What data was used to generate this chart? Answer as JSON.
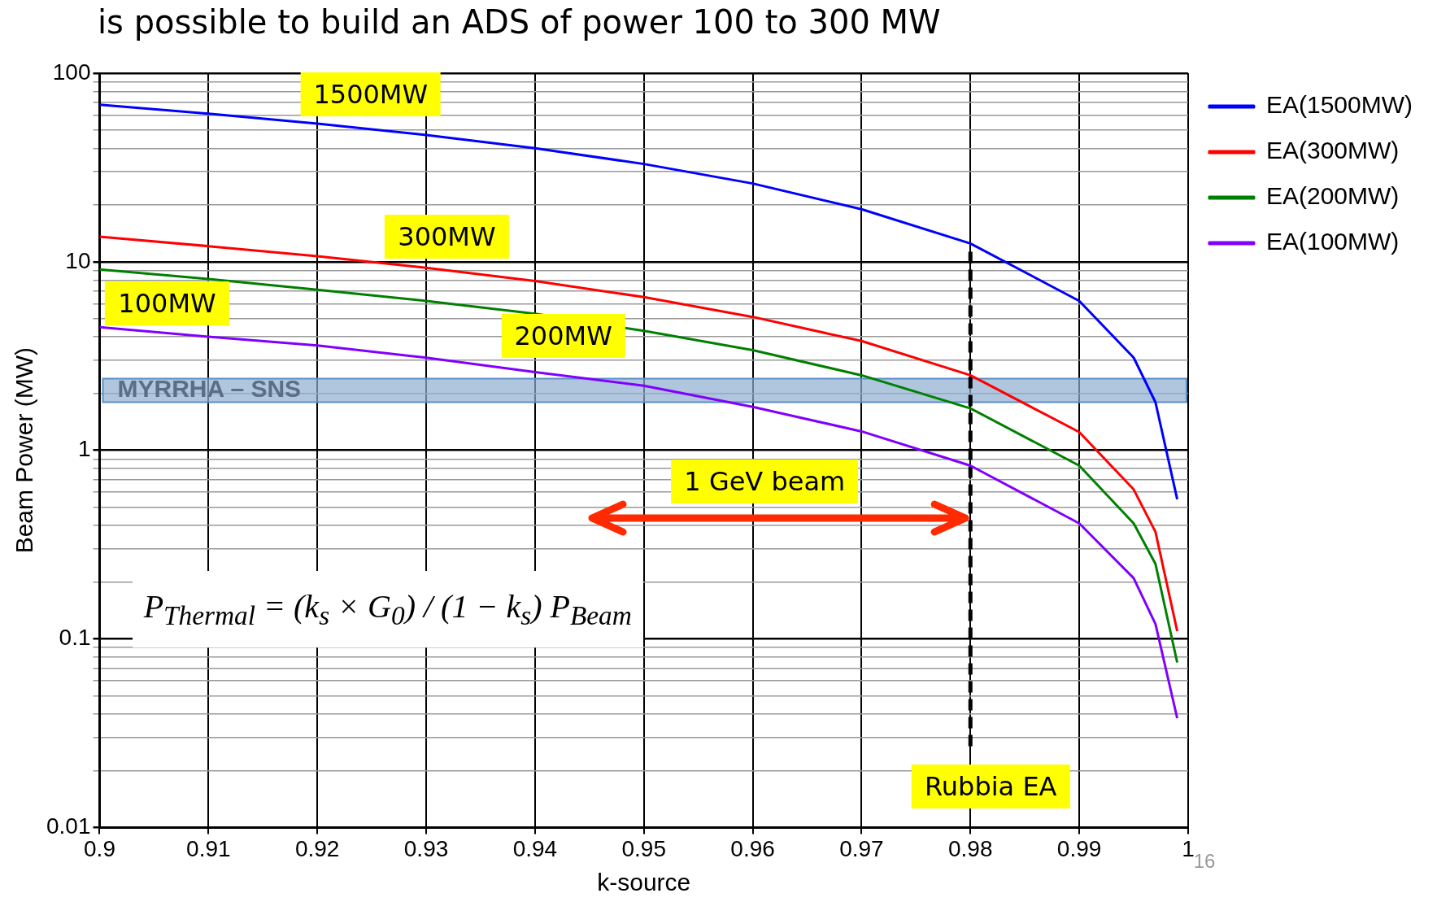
{
  "chart_data": {
    "type": "line",
    "title": "is possible to build an ADS of power 100 to 300 MW",
    "xlabel": "k-source",
    "ylabel": "Beam Power (MW)",
    "x": [
      0.9,
      0.91,
      0.92,
      0.93,
      0.94,
      0.95,
      0.96,
      0.97,
      0.98,
      0.99,
      0.995,
      0.997,
      0.999
    ],
    "series": [
      {
        "name": "EA(1500MW)",
        "color": "#0000ff",
        "values": [
          68,
          61,
          54,
          47,
          40,
          33,
          26,
          19,
          12.5,
          6.2,
          3.1,
          1.8,
          0.55
        ]
      },
      {
        "name": "EA(300MW)",
        "color": "#ff0000",
        "values": [
          13.6,
          12.1,
          10.7,
          9.3,
          7.9,
          6.5,
          5.1,
          3.8,
          2.5,
          1.25,
          0.62,
          0.37,
          0.11
        ]
      },
      {
        "name": "EA(200MW)",
        "color": "#008000",
        "values": [
          9.1,
          8.1,
          7.1,
          6.2,
          5.3,
          4.3,
          3.4,
          2.5,
          1.67,
          0.83,
          0.41,
          0.25,
          0.075
        ]
      },
      {
        "name": "EA(100MW)",
        "color": "#8000ff",
        "values": [
          4.5,
          4.0,
          3.6,
          3.1,
          2.6,
          2.2,
          1.7,
          1.26,
          0.83,
          0.41,
          0.21,
          0.12,
          0.038
        ]
      }
    ],
    "xlim": [
      0.9,
      1
    ],
    "xticks": [
      0.9,
      0.91,
      0.92,
      0.93,
      0.94,
      0.95,
      0.96,
      0.97,
      0.98,
      0.99,
      1
    ],
    "ylim": [
      0.01,
      100
    ],
    "yticks": [
      0.01,
      {
        "value": 0.02,
        "label": null
      },
      {
        "value": 0.03,
        "label": null
      },
      {
        "value": 0.04,
        "label": null
      },
      {
        "value": 0.05,
        "label": null
      },
      {
        "value": 0.06,
        "label": null
      },
      {
        "value": 0.07,
        "label": null
      },
      {
        "value": 0.08,
        "label": null
      },
      {
        "value": 0.09,
        "label": null
      },
      0.1,
      {
        "value": 0.2,
        "label": null
      },
      {
        "value": 0.3,
        "label": null
      },
      {
        "value": 0.4,
        "label": null
      },
      {
        "value": 0.5,
        "label": null
      },
      {
        "value": 0.6,
        "label": null
      },
      {
        "value": 0.7,
        "label": null
      },
      {
        "value": 0.8,
        "label": null
      },
      {
        "value": 0.9,
        "label": null
      },
      1,
      {
        "value": 2,
        "label": null
      },
      {
        "value": 3,
        "label": null
      },
      {
        "value": 4,
        "label": null
      },
      {
        "value": 5,
        "label": null
      },
      {
        "value": 6,
        "label": null
      },
      {
        "value": 7,
        "label": null
      },
      {
        "value": 8,
        "label": null
      },
      {
        "value": 9,
        "label": null
      },
      10,
      {
        "value": 20,
        "label": null
      },
      {
        "value": 30,
        "label": null
      },
      {
        "value": 40,
        "label": null
      },
      {
        "value": 50,
        "label": null
      },
      {
        "value": 60,
        "label": null
      },
      {
        "value": 70,
        "label": null
      },
      {
        "value": 80,
        "label": null
      },
      {
        "value": 90,
        "label": null
      },
      100
    ],
    "log": "y",
    "grid": true,
    "legend": "top right",
    "marker": "none",
    "ref_lines": [
      {
        "axis": "x",
        "value": 0.98,
        "label": "Rubbia EA",
        "color": "#000000",
        "line_style": "dashed"
      }
    ],
    "bands": [
      {
        "axis": "y",
        "from": 1.8,
        "to": 2.4,
        "label": "MYRRHA – SNS",
        "color": "#8fadd0"
      }
    ],
    "annotations": [
      "1500MW",
      "300MW",
      "200MW",
      "100MW",
      "1 GeV beam",
      "P$_{Thermal}$ = (k$_{s}$ × G$_{0}$) / (1 − k$_{s}$) P$_{Beam}$",
      "16"
    ]
  }
}
